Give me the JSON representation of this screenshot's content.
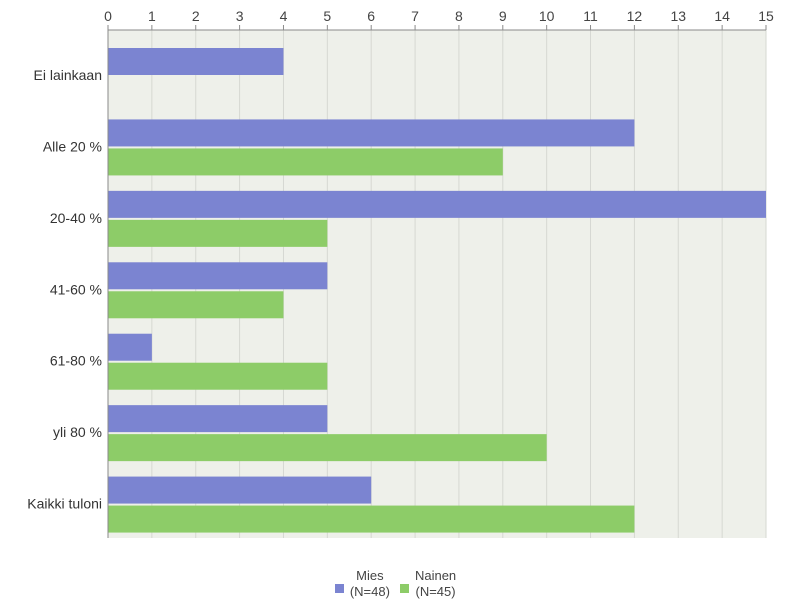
{
  "chart_data": {
    "type": "bar",
    "orientation": "horizontal",
    "categories": [
      "Ei lainkaan",
      "Alle 20 %",
      "20-40 %",
      "41-60 %",
      "61-80 %",
      "yli 80 %",
      "Kaikki tuloni"
    ],
    "series": [
      {
        "name": "Mies",
        "note": "(N=48)",
        "color": "#7b84d1",
        "values": [
          4,
          12,
          15,
          5,
          1,
          5,
          6
        ]
      },
      {
        "name": "Nainen",
        "note": "(N=45)",
        "color": "#8dcc68",
        "values": [
          0,
          9,
          5,
          4,
          5,
          10,
          12
        ]
      }
    ],
    "x_ticks": [
      "0",
      "1",
      "2",
      "3",
      "4",
      "5",
      "6",
      "7",
      "8",
      "9",
      "10",
      "11",
      "12",
      "13",
      "14",
      "15"
    ],
    "xlim": [
      0,
      15
    ],
    "axis_position": "top",
    "grid": true,
    "legend_position": "bottom-center",
    "colors": {
      "plot_background": "#eef0ea",
      "gridline": "#d6d8d2",
      "axis": "#8a8a8a"
    }
  }
}
